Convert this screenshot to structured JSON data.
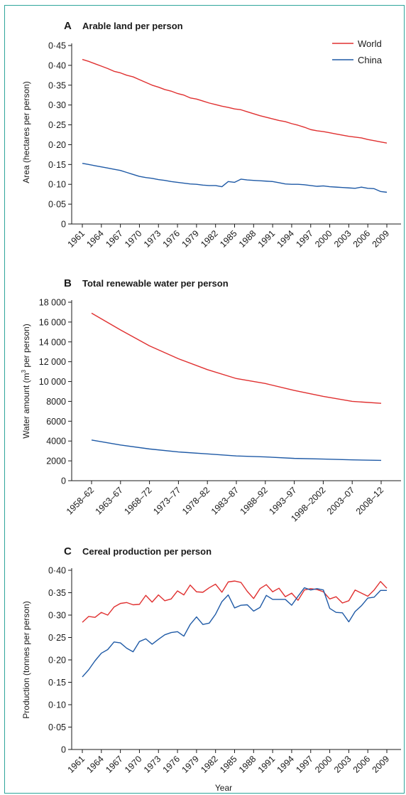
{
  "colors": {
    "world": "#e03030",
    "china": "#1f5aa6",
    "frame": "#2fa59a"
  },
  "legend": {
    "world": "World",
    "china": "China"
  },
  "chart_data": [
    {
      "panel": "A",
      "type": "line",
      "title": "Arable land per person",
      "ylabel": "Area (hectares per person)",
      "xlabel": "",
      "ylim": [
        0,
        0.45
      ],
      "yticks": [
        "0",
        "0·05",
        "0·10",
        "0·15",
        "0·20",
        "0·25",
        "0·30",
        "0·35",
        "0·40",
        "0·45"
      ],
      "xtick_labels": [
        "1961",
        "1964",
        "1967",
        "1970",
        "1973",
        "1976",
        "1979",
        "1982",
        "1985",
        "1988",
        "1991",
        "1994",
        "1997",
        "2000",
        "2003",
        "2006",
        "2009"
      ],
      "x": [
        1961,
        1962,
        1963,
        1964,
        1965,
        1966,
        1967,
        1968,
        1969,
        1970,
        1971,
        1972,
        1973,
        1974,
        1975,
        1976,
        1977,
        1978,
        1979,
        1980,
        1981,
        1982,
        1983,
        1984,
        1985,
        1986,
        1987,
        1988,
        1989,
        1990,
        1991,
        1992,
        1993,
        1994,
        1995,
        1996,
        1997,
        1998,
        1999,
        2000,
        2001,
        2002,
        2003,
        2004,
        2005,
        2006,
        2007,
        2008,
        2009
      ],
      "series": [
        {
          "name": "World",
          "values": [
            0.415,
            0.41,
            0.404,
            0.398,
            0.392,
            0.385,
            0.381,
            0.375,
            0.371,
            0.364,
            0.357,
            0.35,
            0.345,
            0.339,
            0.335,
            0.329,
            0.325,
            0.318,
            0.315,
            0.31,
            0.305,
            0.301,
            0.297,
            0.294,
            0.29,
            0.288,
            0.283,
            0.278,
            0.273,
            0.269,
            0.265,
            0.261,
            0.258,
            0.253,
            0.249,
            0.244,
            0.238,
            0.235,
            0.233,
            0.23,
            0.227,
            0.224,
            0.221,
            0.219,
            0.217,
            0.213,
            0.21,
            0.207,
            0.204
          ]
        },
        {
          "name": "China",
          "values": [
            0.153,
            0.15,
            0.147,
            0.144,
            0.141,
            0.138,
            0.135,
            0.13,
            0.125,
            0.12,
            0.117,
            0.115,
            0.112,
            0.11,
            0.107,
            0.105,
            0.103,
            0.101,
            0.1,
            0.098,
            0.097,
            0.097,
            0.094,
            0.107,
            0.105,
            0.113,
            0.111,
            0.11,
            0.109,
            0.108,
            0.107,
            0.104,
            0.101,
            0.1,
            0.1,
            0.099,
            0.097,
            0.095,
            0.096,
            0.094,
            0.093,
            0.092,
            0.091,
            0.09,
            0.093,
            0.09,
            0.089,
            0.082,
            0.08
          ]
        }
      ]
    },
    {
      "panel": "B",
      "type": "line",
      "title": "Total renewable water per person",
      "ylabel": "Water amount (m³ per person)",
      "xlabel": "",
      "ylim": [
        0,
        18000
      ],
      "yticks": [
        "0",
        "2000",
        "4000",
        "6000",
        "8000",
        "10 000",
        "12 000",
        "14 000",
        "16 000",
        "18 000"
      ],
      "categories": [
        "1958–62",
        "1963–67",
        "1968–72",
        "1973–77",
        "1978–82",
        "1983–87",
        "1988–92",
        "1993–97",
        "1998–2002",
        "2003–07",
        "2008–12"
      ],
      "series": [
        {
          "name": "World",
          "values": [
            16900,
            15200,
            13600,
            12300,
            11200,
            10300,
            9800,
            9100,
            8500,
            8000,
            7800
          ]
        },
        {
          "name": "China",
          "values": [
            4100,
            3600,
            3200,
            2900,
            2700,
            2500,
            2400,
            2250,
            2180,
            2100,
            2050
          ]
        }
      ]
    },
    {
      "panel": "C",
      "type": "line",
      "title": "Cereal production per person",
      "ylabel": "Production (tonnes per person)",
      "xlabel": "Year",
      "ylim": [
        0,
        0.4
      ],
      "yticks": [
        "0",
        "0·05",
        "0·10",
        "0·15",
        "0·20",
        "0·25",
        "0·30",
        "0·35",
        "0·40"
      ],
      "xtick_labels": [
        "1961",
        "1964",
        "1967",
        "1970",
        "1973",
        "1976",
        "1979",
        "1982",
        "1985",
        "1988",
        "1991",
        "1994",
        "1997",
        "2000",
        "2003",
        "2006",
        "2009"
      ],
      "x": [
        1961,
        1962,
        1963,
        1964,
        1965,
        1966,
        1967,
        1968,
        1969,
        1970,
        1971,
        1972,
        1973,
        1974,
        1975,
        1976,
        1977,
        1978,
        1979,
        1980,
        1981,
        1982,
        1983,
        1984,
        1985,
        1986,
        1987,
        1988,
        1989,
        1990,
        1991,
        1992,
        1993,
        1994,
        1995,
        1996,
        1997,
        1998,
        1999,
        2000,
        2001,
        2002,
        2003,
        2004,
        2005,
        2006,
        2007,
        2008,
        2009
      ],
      "series": [
        {
          "name": "World",
          "values": [
            0.284,
            0.297,
            0.295,
            0.306,
            0.3,
            0.318,
            0.326,
            0.328,
            0.323,
            0.324,
            0.344,
            0.329,
            0.345,
            0.332,
            0.336,
            0.354,
            0.345,
            0.367,
            0.352,
            0.351,
            0.361,
            0.369,
            0.351,
            0.374,
            0.376,
            0.373,
            0.353,
            0.337,
            0.359,
            0.368,
            0.352,
            0.36,
            0.341,
            0.349,
            0.333,
            0.356,
            0.359,
            0.357,
            0.352,
            0.336,
            0.341,
            0.327,
            0.332,
            0.356,
            0.349,
            0.342,
            0.356,
            0.375,
            0.36
          ]
        },
        {
          "name": "China",
          "values": [
            0.162,
            0.178,
            0.198,
            0.215,
            0.223,
            0.24,
            0.238,
            0.226,
            0.218,
            0.241,
            0.247,
            0.235,
            0.246,
            0.256,
            0.261,
            0.263,
            0.253,
            0.279,
            0.296,
            0.279,
            0.282,
            0.302,
            0.33,
            0.345,
            0.316,
            0.322,
            0.323,
            0.309,
            0.317,
            0.344,
            0.335,
            0.335,
            0.335,
            0.322,
            0.342,
            0.361,
            0.356,
            0.359,
            0.356,
            0.315,
            0.306,
            0.305,
            0.285,
            0.308,
            0.321,
            0.338,
            0.34,
            0.355,
            0.355
          ]
        }
      ]
    }
  ]
}
